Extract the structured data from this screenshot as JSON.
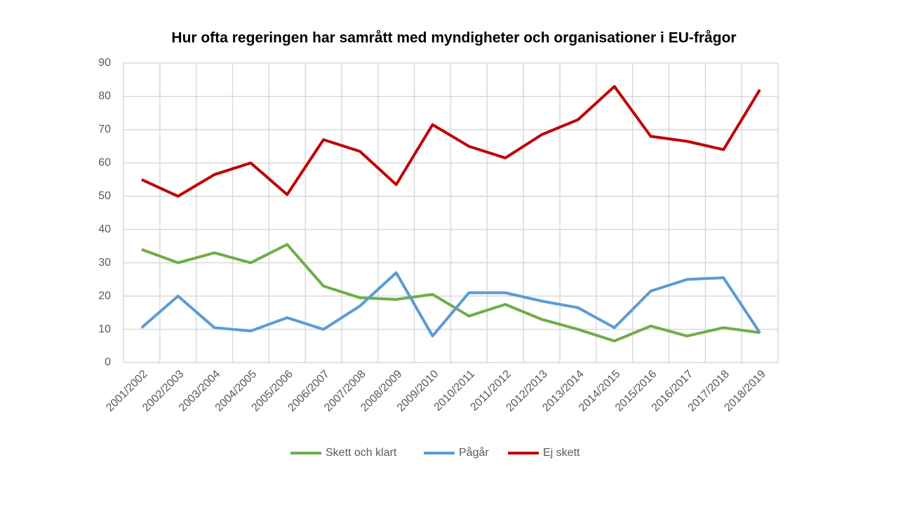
{
  "chart_data": {
    "type": "line",
    "title": "Hur ofta regeringen har samrått med myndigheter och organisationer i EU-frågor",
    "categories": [
      "2001/2002",
      "2002/2003",
      "2003/2004",
      "2004/2005",
      "2005/2006",
      "2006/2007",
      "2007/2008",
      "2008/2009",
      "2009/2010",
      "2010/2011",
      "2011/2012",
      "2012/2013",
      "2013/2014",
      "2014/2015",
      "2015/2016",
      "2016/2017",
      "2017/2018",
      "2018/2019"
    ],
    "series": [
      {
        "name": "Skett och klart",
        "color": "#70ad47",
        "values": [
          34,
          30,
          33,
          30,
          35.5,
          23,
          19.5,
          19,
          20.5,
          14,
          17.5,
          13,
          10,
          6.5,
          11,
          8,
          10.5,
          9
        ]
      },
      {
        "name": "Pågår",
        "color": "#5b9bd5",
        "values": [
          10.5,
          20,
          10.5,
          9.5,
          13.5,
          10,
          17,
          27,
          8,
          21,
          21,
          18.5,
          16.5,
          10.5,
          21.5,
          25,
          25.5,
          9
        ]
      },
      {
        "name": "Ej skett",
        "color": "#c00000",
        "values": [
          55,
          50,
          56.5,
          60,
          50.5,
          67,
          63.5,
          53.5,
          71.5,
          65,
          61.5,
          68.5,
          73,
          83,
          68,
          66.5,
          64,
          82
        ]
      }
    ],
    "ylim": [
      0,
      90
    ],
    "yticks": [
      0,
      10,
      20,
      30,
      40,
      50,
      60,
      70,
      80,
      90
    ],
    "grid": true,
    "legend": "bottom"
  }
}
